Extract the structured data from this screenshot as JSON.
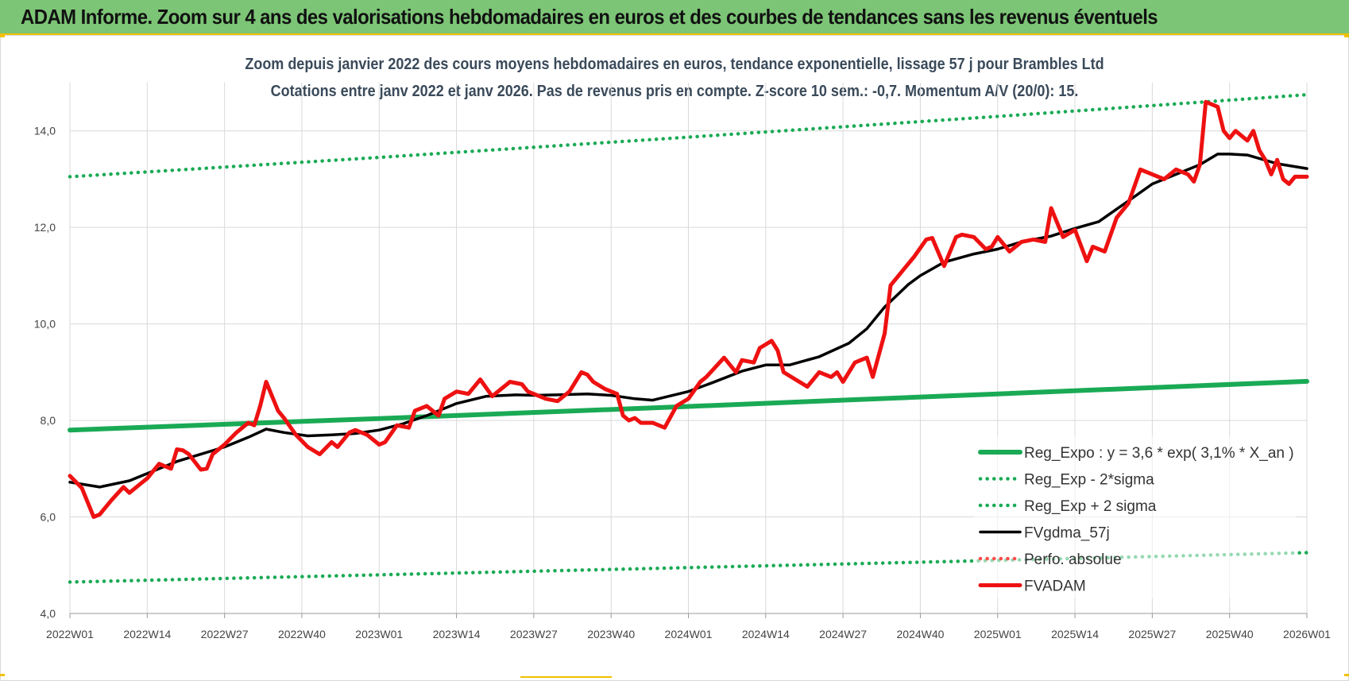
{
  "header": {
    "title": "ADAM Informe. Zoom sur 4 ans des valorisations hebdomadaires en euros et des courbes de tendances sans les revenus éventuels"
  },
  "chart_data": {
    "type": "line",
    "title": "Zoom depuis janvier 2022 des cours moyens hebdomadaires en euros, tendance exponentielle, lissage 57 j pour Brambles Ltd",
    "subtitle": "Cotations entre janv 2022 et janv 2026. Pas de revenus pris en compte. Z-score 10 sem.: -0,7. Momentum A/V (20/0): 15.",
    "xlabel": "",
    "ylabel": "",
    "ylim": [
      4,
      15
    ],
    "yticks": [
      "4,0",
      "6,0",
      "8,0",
      "10,0",
      "12,0",
      "14,0"
    ],
    "ytick_values": [
      4,
      6,
      8,
      10,
      12,
      14
    ],
    "xlim": [
      0,
      208
    ],
    "x_tick_labels": [
      "2022W01",
      "2022W14",
      "2022W27",
      "2022W40",
      "2023W01",
      "2023W14",
      "2023W27",
      "2023W40",
      "2024W01",
      "2024W14",
      "2024W27",
      "2024W40",
      "2025W01",
      "2025W14",
      "2025W27",
      "2025W40",
      "2026W01"
    ],
    "x_tick_weeks": [
      0,
      13,
      26,
      39,
      52,
      65,
      78,
      91,
      104,
      117,
      130,
      143,
      156,
      169,
      182,
      195,
      208
    ],
    "grid": true,
    "legend_position": "bottom-right",
    "series": [
      {
        "name": "Reg_Expo : y = 3,6 * exp( 3,1% *  X_an )",
        "style": "solid",
        "color": "#1aaa55",
        "x": [
          0,
          52,
          104,
          156,
          208
        ],
        "values": [
          7.8,
          8.04,
          8.29,
          8.55,
          8.81
        ]
      },
      {
        "name": "Reg_Exp - 2*sigma",
        "style": "dotted",
        "color": "#1aaa55",
        "x": [
          0,
          52,
          104,
          156,
          208
        ],
        "values": [
          4.65,
          4.8,
          4.95,
          5.1,
          5.26
        ]
      },
      {
        "name": "Reg_Exp + 2 sigma",
        "style": "dotted",
        "color": "#1aaa55",
        "x": [
          0,
          52,
          104,
          156,
          208
        ],
        "values": [
          13.05,
          13.45,
          13.87,
          14.3,
          14.75
        ]
      },
      {
        "name": "FVgdma_57j",
        "style": "solid",
        "color": "#000000",
        "x": [
          0,
          5,
          10,
          13,
          18,
          22,
          26,
          30,
          33,
          36,
          40,
          44,
          48,
          52,
          56,
          60,
          65,
          70,
          75,
          78,
          82,
          87,
          91,
          95,
          98,
          104,
          108,
          113,
          117,
          121,
          126,
          131,
          134,
          137,
          141,
          143,
          147,
          152,
          156,
          160,
          165,
          169,
          173,
          178,
          182,
          186,
          190,
          193,
          195,
          198,
          203,
          208
        ],
        "values": [
          6.72,
          6.62,
          6.75,
          6.9,
          7.15,
          7.3,
          7.45,
          7.65,
          7.82,
          7.75,
          7.68,
          7.7,
          7.73,
          7.8,
          7.93,
          8.1,
          8.35,
          8.5,
          8.53,
          8.52,
          8.53,
          8.55,
          8.52,
          8.45,
          8.42,
          8.6,
          8.78,
          9.02,
          9.15,
          9.15,
          9.32,
          9.6,
          9.9,
          10.35,
          10.82,
          11.0,
          11.28,
          11.45,
          11.55,
          11.7,
          11.82,
          11.98,
          12.12,
          12.55,
          12.9,
          13.1,
          13.3,
          13.52,
          13.52,
          13.5,
          13.32,
          13.22
        ]
      },
      {
        "name": "Perfo. absolue",
        "style": "dotted",
        "color": "#ff4d4d",
        "x": [],
        "values": []
      },
      {
        "name": "FVADAM",
        "style": "solid",
        "color": "#ee1111",
        "x": [
          0,
          2,
          4,
          5,
          7,
          9,
          10,
          12,
          13,
          15,
          16,
          17,
          18,
          19,
          20,
          22,
          23,
          24,
          26,
          28,
          30,
          31,
          32,
          33,
          35,
          36,
          38,
          40,
          42,
          44,
          45,
          47,
          48,
          50,
          52,
          53,
          55,
          57,
          58,
          60,
          62,
          63,
          65,
          67,
          69,
          71,
          73,
          74,
          76,
          77,
          78,
          80,
          82,
          84,
          86,
          87,
          88,
          90,
          92,
          93,
          94,
          95,
          96,
          98,
          100,
          102,
          104,
          106,
          107,
          110,
          112,
          113,
          115,
          116,
          118,
          119,
          120,
          122,
          124,
          126,
          128,
          129,
          130,
          132,
          134,
          135,
          137,
          138,
          140,
          142,
          144,
          145,
          147,
          149,
          150,
          152,
          154,
          155,
          156,
          158,
          160,
          162,
          164,
          165,
          167,
          169,
          171,
          172,
          174,
          176,
          178,
          180,
          182,
          184,
          186,
          188,
          189,
          190,
          191,
          192,
          193,
          194,
          195,
          196,
          198,
          199,
          200,
          201,
          202,
          203,
          204,
          205,
          206,
          208
        ],
        "values": [
          6.85,
          6.6,
          6.0,
          6.05,
          6.35,
          6.62,
          6.5,
          6.7,
          6.8,
          7.1,
          7.05,
          7.0,
          7.4,
          7.38,
          7.3,
          6.98,
          7.0,
          7.3,
          7.5,
          7.75,
          7.95,
          7.9,
          8.3,
          8.8,
          8.2,
          8.05,
          7.7,
          7.45,
          7.3,
          7.55,
          7.45,
          7.75,
          7.8,
          7.7,
          7.5,
          7.55,
          7.9,
          7.85,
          8.2,
          8.3,
          8.1,
          8.45,
          8.6,
          8.55,
          8.85,
          8.5,
          8.7,
          8.8,
          8.75,
          8.6,
          8.55,
          8.45,
          8.4,
          8.6,
          9.0,
          8.95,
          8.8,
          8.65,
          8.55,
          8.1,
          8.0,
          8.05,
          7.95,
          7.95,
          7.85,
          8.3,
          8.45,
          8.8,
          8.9,
          9.3,
          9.0,
          9.25,
          9.2,
          9.5,
          9.65,
          9.45,
          9.0,
          8.85,
          8.7,
          9.0,
          8.9,
          9.0,
          8.8,
          9.2,
          9.3,
          8.9,
          9.8,
          10.8,
          11.1,
          11.4,
          11.75,
          11.78,
          11.2,
          11.8,
          11.85,
          11.8,
          11.55,
          11.6,
          11.8,
          11.5,
          11.7,
          11.75,
          11.7,
          12.4,
          11.8,
          11.95,
          11.3,
          11.6,
          11.5,
          12.2,
          12.5,
          13.2,
          13.1,
          13.0,
          13.2,
          13.1,
          12.95,
          13.3,
          14.6,
          14.55,
          14.5,
          14.0,
          13.85,
          14.0,
          13.8,
          14.0,
          13.6,
          13.4,
          13.1,
          13.4,
          13.0,
          12.9,
          13.05,
          13.05
        ]
      }
    ]
  }
}
